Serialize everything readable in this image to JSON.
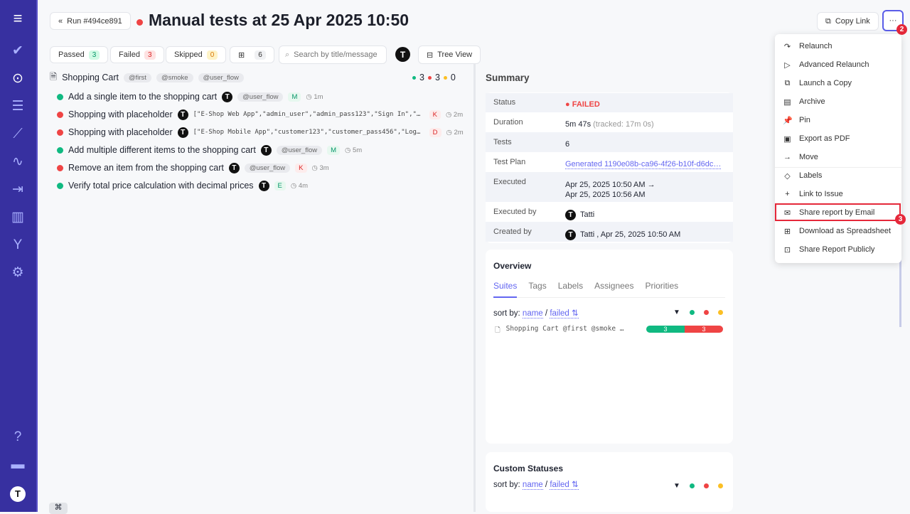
{
  "header": {
    "back_label": "Run #494ce891",
    "title": "Manual tests at 25 Apr 2025 10:50",
    "copy_link": "Copy Link",
    "more": "···"
  },
  "filters": {
    "passed": {
      "label": "Passed",
      "count": "3"
    },
    "failed": {
      "label": "Failed",
      "count": "3"
    },
    "skipped": {
      "label": "Skipped",
      "count": "0"
    },
    "comments": "6",
    "search_placeholder": "Search by title/message",
    "tree_view": "Tree View"
  },
  "suite": {
    "name": "Shopping Cart",
    "tags": [
      "@first",
      "@smoke",
      "@user_flow"
    ],
    "passed": "3",
    "failed": "3",
    "skipped": "0"
  },
  "tests": [
    {
      "status": "passed",
      "title": "Add a single item to the shopping cart",
      "tag": "@user_flow",
      "params": "",
      "label": "M",
      "time": "1m"
    },
    {
      "status": "failed",
      "title": "Shopping with placeholder",
      "tag": "",
      "params": "[\"E-Shop Web App\",\"admin_user\",\"admin_pass123\",\"Sign In\",\"Admin…",
      "label": "K",
      "time": "2m"
    },
    {
      "status": "failed",
      "title": "Shopping with placeholder",
      "tag": "",
      "params": "[\"E-Shop Mobile App\",\"customer123\",\"customer_pass456\",\"Log In\",…",
      "label": "D",
      "time": "2m"
    },
    {
      "status": "passed",
      "title": "Add multiple different items to the shopping cart",
      "tag": "@user_flow",
      "params": "",
      "label": "M",
      "time": "5m"
    },
    {
      "status": "failed",
      "title": "Remove an item from the shopping cart",
      "tag": "@user_flow",
      "params": "",
      "label": "K",
      "time": "3m"
    },
    {
      "status": "passed",
      "title": "Verify total price calculation with decimal prices",
      "tag": "",
      "params": "",
      "label": "E",
      "time": "4m"
    }
  ],
  "summary": {
    "heading": "Summary",
    "status_k": "Status",
    "status_v": "FAILED",
    "duration_k": "Duration",
    "duration_v": "5m 47s",
    "duration_tracked": "(tracked: 17m 0s)",
    "tests_k": "Tests",
    "tests_v": "6",
    "plan_k": "Test Plan",
    "plan_v": "Generated 1190e08b-ca96-4f26-b10f-d6dc…",
    "executed_k": "Executed",
    "executed_v1": "Apr 25, 2025 10:50 AM →",
    "executed_v2": "Apr 25, 2025 10:56 AM",
    "executed_by_k": "Executed by",
    "executed_by_v": "Tatti",
    "created_by_k": "Created by",
    "created_by_v": "Tatti , Apr 25, 2025 10:50 AM"
  },
  "overview": {
    "heading": "Overview",
    "tabs": [
      "Suites",
      "Tags",
      "Labels",
      "Assignees",
      "Priorities"
    ],
    "sort_by": "sort by:",
    "sort_name": "name",
    "sort_sep": "/",
    "sort_failed": "failed ⇅",
    "suite_row": "Shopping Cart @first @smoke …",
    "bar_passed": "3",
    "bar_failed": "3"
  },
  "custom": {
    "heading": "Custom Statuses",
    "sort_by": "sort by:",
    "sort_name": "name",
    "sort_sep": "/",
    "sort_failed": "failed ⇅"
  },
  "menu": [
    {
      "label": "Relaunch",
      "icon": "↷"
    },
    {
      "label": "Advanced Relaunch",
      "icon": "▷"
    },
    {
      "label": "Launch a Copy",
      "icon": "⧉"
    },
    {
      "label": "Archive",
      "icon": "▤"
    },
    {
      "label": "Pin",
      "icon": "📌"
    },
    {
      "label": "Export as PDF",
      "icon": "▣"
    },
    {
      "label": "Move",
      "icon": "→"
    },
    {
      "label": "Labels",
      "icon": "◇"
    },
    {
      "label": "Link to Issue",
      "icon": "+"
    },
    {
      "label": "Share report by Email",
      "icon": "✉"
    },
    {
      "label": "Download as Spreadsheet",
      "icon": "⊞"
    },
    {
      "label": "Share Report Publicly",
      "icon": "⊡"
    }
  ],
  "annotations": {
    "more": "2",
    "email": "3"
  },
  "colors": {
    "sidebar": "#3730a0",
    "passed": "#10b981",
    "failed": "#ef4444",
    "skipped": "#fbbf24",
    "accent": "#6366f1"
  }
}
